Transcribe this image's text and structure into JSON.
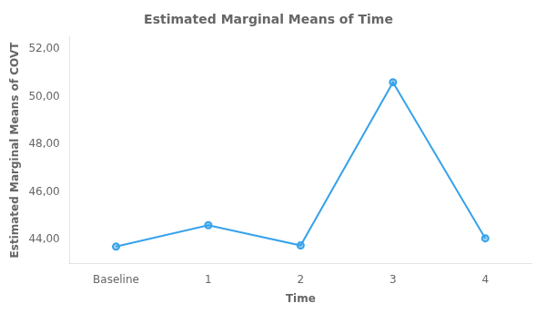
{
  "chart_data": {
    "type": "line",
    "title": "Estimated Marginal Means of Time",
    "xlabel": "Time",
    "ylabel": "Estimated Marginal Means of COVT",
    "categories": [
      "Baseline",
      "1",
      "2",
      "3",
      "4"
    ],
    "values": [
      43.7,
      44.6,
      43.75,
      50.6,
      44.05
    ],
    "ylim": [
      43.0,
      52.5
    ],
    "yticks": [
      {
        "value": 44.0,
        "label": "44,00"
      },
      {
        "value": 46.0,
        "label": "46,00"
      },
      {
        "value": 48.0,
        "label": "48,00"
      },
      {
        "value": 50.0,
        "label": "50,00"
      },
      {
        "value": 52.0,
        "label": "52,00"
      }
    ],
    "marker": "circle",
    "grid": false
  }
}
